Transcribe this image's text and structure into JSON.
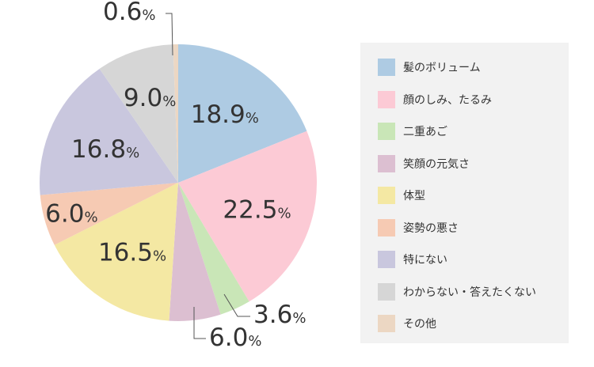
{
  "chart_data": {
    "type": "pie",
    "start": "top",
    "direction": "clockwise",
    "unit": "%",
    "legend_position": "right",
    "slices": [
      {
        "label": "髪のボリューム",
        "value": 18.9,
        "display": "18.9",
        "color": "#aecbe3"
      },
      {
        "label": "顔のしみ、たるみ",
        "value": 22.5,
        "display": "22.5",
        "color": "#fccad5"
      },
      {
        "label": "二重あご",
        "value": 3.6,
        "display": "3.6",
        "color": "#c9e6b7"
      },
      {
        "label": "笑顔の元気さ",
        "value": 6.0,
        "display": "6.0",
        "color": "#dcbfd1"
      },
      {
        "label": "体型",
        "value": 16.5,
        "display": "16.5",
        "color": "#f4e8a3"
      },
      {
        "label": "姿勢の悪さ",
        "value": 6.0,
        "display": "6.0",
        "color": "#f6cab3"
      },
      {
        "label": "特にない",
        "value": 16.8,
        "display": "16.8",
        "color": "#c9c7de"
      },
      {
        "label": "わからない・答えたくない",
        "value": 9.0,
        "display": "9.0",
        "color": "#d6d6d6"
      },
      {
        "label": "その他",
        "value": 0.6,
        "display": "0.6",
        "color": "#ecd7c3"
      }
    ]
  }
}
